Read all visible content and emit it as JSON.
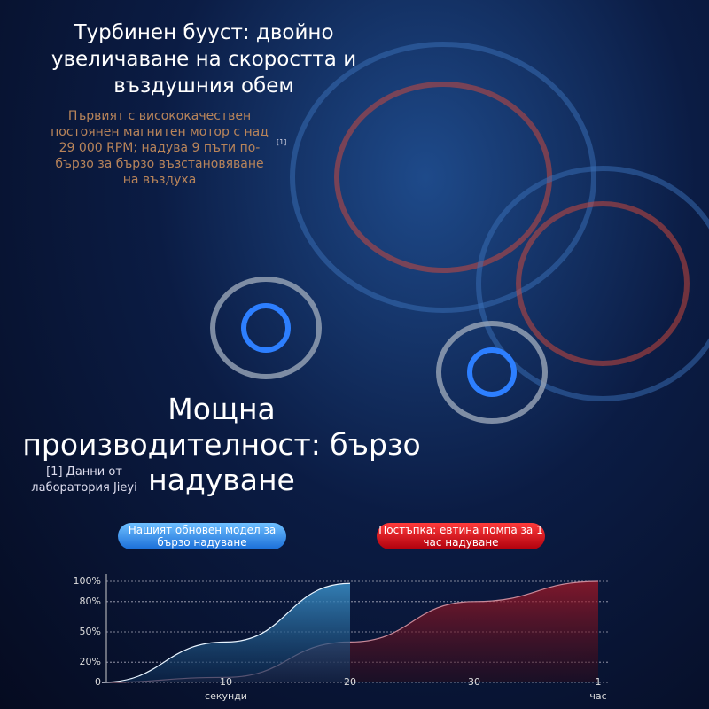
{
  "header": {
    "title": "Турбинен бууст: двойно увеличаване на скоростта и въздушния обем",
    "text": "Първият с висококачествен постоянен магнитен мотор с над 29 000 RPM; надува 9 пъти по-бързо за бързо възстановяване на въздуха",
    "note_mark": "[1]"
  },
  "section": {
    "title": "Мощна производителност: бързо надуване",
    "footnote": "[1] Данни от лаборатория Jieyi"
  },
  "chart_data": {
    "type": "area",
    "categories": [
      null,
      "10",
      "20",
      "30",
      "1"
    ],
    "x_unit_labels": [
      "секунди",
      "час"
    ],
    "series": [
      {
        "name": "Нашият обновен модел за бързо надуване",
        "color": "#2f8fd8",
        "values": [
          0,
          40,
          98,
          null,
          null
        ]
      },
      {
        "name": "Постъпка: евтина помпа за 1 час надуване",
        "color": "#c81e2a",
        "values": [
          0,
          5,
          40,
          80,
          100
        ]
      }
    ],
    "ylim": [
      0,
      100
    ],
    "yticks": [
      0,
      {
        "value": 20,
        "label": "20%"
      },
      {
        "value": 50,
        "label": "50%"
      },
      {
        "value": 80,
        "label": "80%"
      },
      {
        "value": 100,
        "label": "100%"
      }
    ],
    "grid": true
  }
}
